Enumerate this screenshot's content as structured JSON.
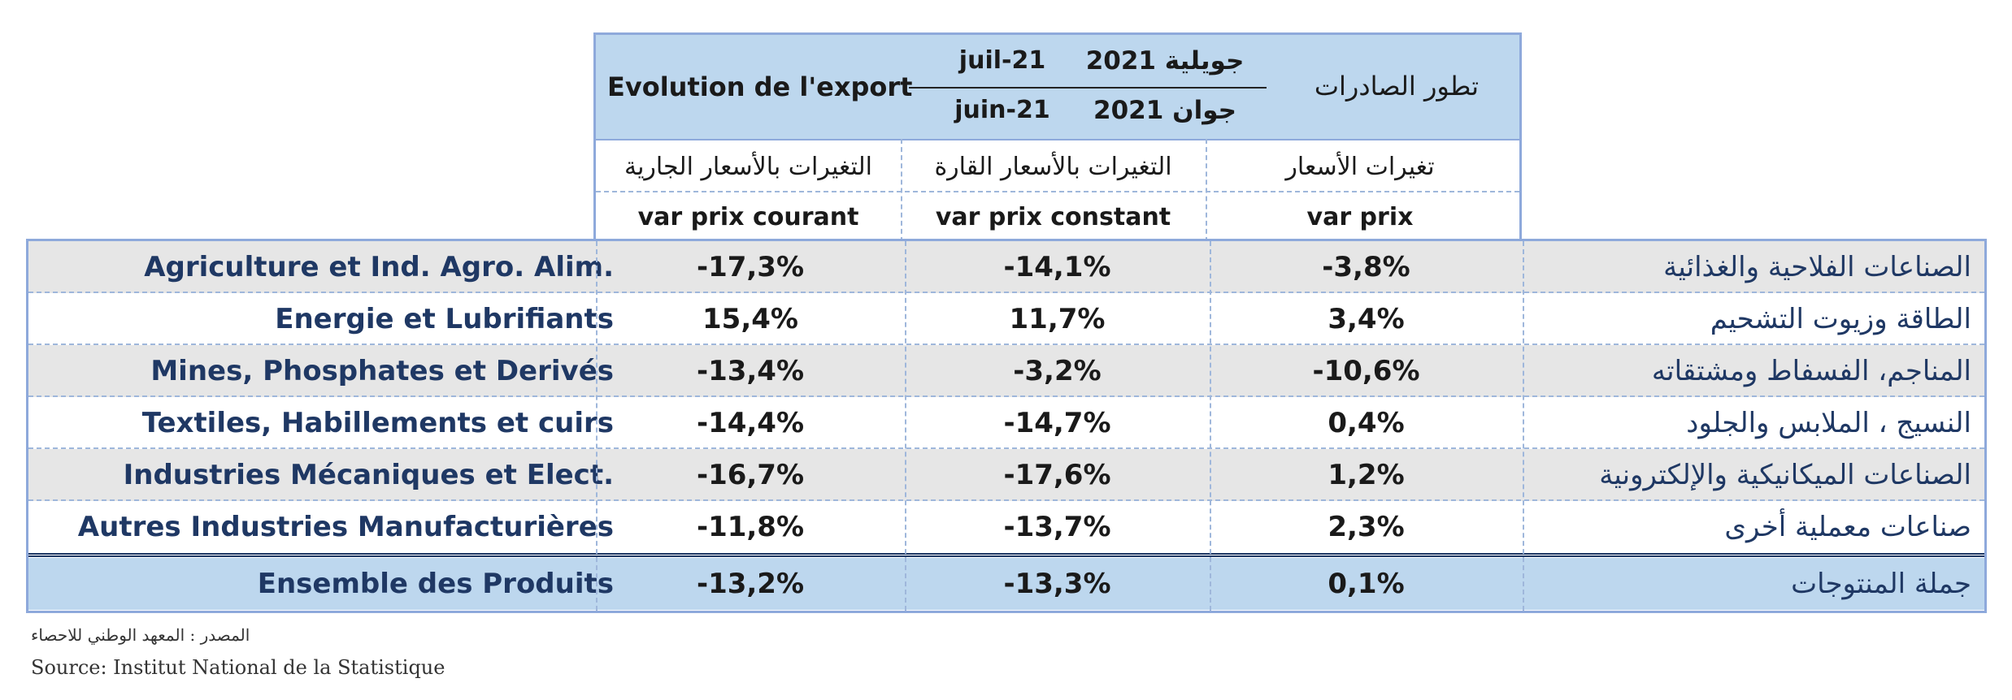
{
  "header": {
    "title_fr": "Evolution de l'export",
    "title_ar": "تطور الصادرات",
    "period_current_fr": "juil-21",
    "period_previous_fr": "juin-21",
    "period_current_ar": "جويلية 2021",
    "period_previous_ar": "جوان 2021",
    "col1_ar": "التغيرات بالأسعار الجارية",
    "col2_ar": "التغيرات بالأسعار القارة",
    "col3_ar": "تغيرات الأسعار",
    "col1_fr": "var prix courant",
    "col2_fr": "var prix constant",
    "col3_fr": "var prix"
  },
  "rows": [
    {
      "fr": "Agriculture et Ind. Agro. Alim.",
      "courant": "-17,3%",
      "constant": "-14,1%",
      "prix": "-3,8%",
      "ar": "الصناعات الفلاحية والغذائية"
    },
    {
      "fr": "Energie et Lubrifiants",
      "courant": "15,4%",
      "constant": "11,7%",
      "prix": "3,4%",
      "ar": "الطاقة وزيوت التشحيم"
    },
    {
      "fr": "Mines, Phosphates et Derivés",
      "courant": "-13,4%",
      "constant": "-3,2%",
      "prix": "-10,6%",
      "ar": "المناجم، الفسفاط ومشتقاته"
    },
    {
      "fr": "Textiles, Habillements et cuirs",
      "courant": "-14,4%",
      "constant": "-14,7%",
      "prix": "0,4%",
      "ar": "النسيج ، الملابس والجلود"
    },
    {
      "fr": "Industries Mécaniques et Elect.",
      "courant": "-16,7%",
      "constant": "-17,6%",
      "prix": "1,2%",
      "ar": "الصناعات الميكانيكية والإلكترونية"
    },
    {
      "fr": "Autres Industries Manufacturières",
      "courant": "-11,8%",
      "constant": "-13,7%",
      "prix": "2,3%",
      "ar": "صناعات معملية أخرى"
    }
  ],
  "total": {
    "fr": "Ensemble des Produits",
    "courant": "-13,2%",
    "constant": "-13,3%",
    "prix": "0,1%",
    "ar": "جملة المنتوجات"
  },
  "source": {
    "ar": "المصدر : المعهد الوطني للاحصاء",
    "fr": "Source: Institut National de la Statistique"
  }
}
